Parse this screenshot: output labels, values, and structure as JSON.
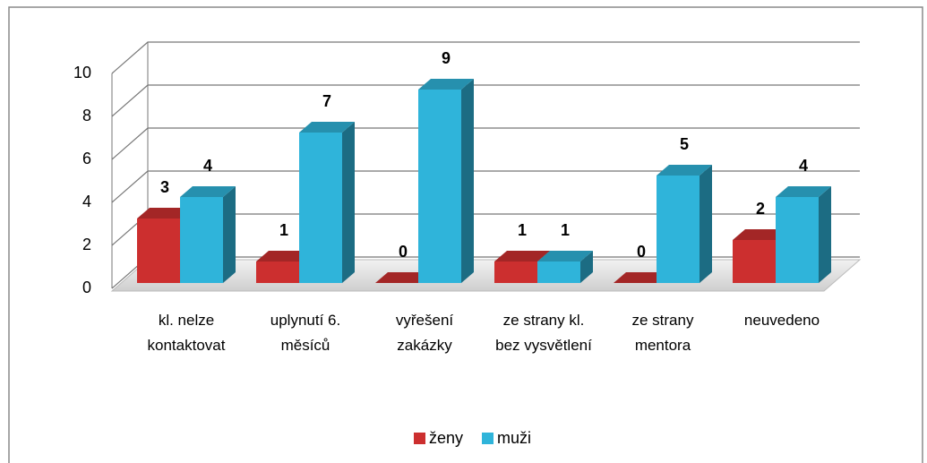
{
  "chart_data": {
    "type": "bar3d",
    "categories": [
      "kl. nelze kontaktovat",
      "uplynutí 6. měsíců",
      "vyřešení zakázky",
      "ze strany kl. bez vysvětlení",
      "ze strany mentora",
      "neuvedeno"
    ],
    "series": [
      {
        "name": "ženy",
        "color": "#cc2f2f",
        "values": [
          3,
          1,
          0,
          1,
          0,
          2
        ]
      },
      {
        "name": "muži",
        "color": "#2fb4da",
        "values": [
          4,
          7,
          9,
          1,
          5,
          4
        ]
      }
    ],
    "ylim": [
      0,
      10
    ],
    "yticks": [
      0,
      2,
      4,
      6,
      8,
      10
    ],
    "grid": true,
    "legend": "bottom"
  }
}
